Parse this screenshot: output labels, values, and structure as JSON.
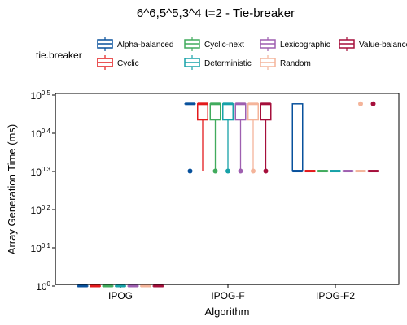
{
  "chart_data": {
    "type": "box",
    "title": "6^6,5^5,3^4 t=2 - Tie-breaker",
    "xlabel": "Algorithm",
    "ylabel": "Array Generation Time (ms)",
    "y_scale": "log10",
    "ylim": [
      0,
      0.5
    ],
    "y_ticks": [
      {
        "value": 0,
        "base": "10",
        "exp": "0"
      },
      {
        "value": 0.1,
        "base": "10",
        "exp": "0.1"
      },
      {
        "value": 0.2,
        "base": "10",
        "exp": "0.2"
      },
      {
        "value": 0.3,
        "base": "10",
        "exp": "0.3"
      },
      {
        "value": 0.4,
        "base": "10",
        "exp": "0.4"
      },
      {
        "value": 0.5,
        "base": "10",
        "exp": "0.5"
      }
    ],
    "categories": [
      "IPOG",
      "IPOG-F",
      "IPOG-F2"
    ],
    "legend": {
      "title": "tie.breaker",
      "position": "top",
      "entries": [
        "Alpha-balanced",
        "Cyclic",
        "Cyclic-next",
        "Deterministic",
        "Lexicographic",
        "Random",
        "Value-balanced"
      ]
    },
    "grid": false,
    "series": [
      {
        "name": "Alpha-balanced",
        "color": "#08519c",
        "boxes": [
          {
            "category": "IPOG",
            "min": 0.0,
            "q1": 0.0,
            "median": 0.0,
            "q3": 0.0,
            "max": 0.0,
            "outliers": []
          },
          {
            "category": "IPOG-F",
            "min": 0.477,
            "q1": 0.477,
            "median": 0.477,
            "q3": 0.477,
            "max": 0.477,
            "outliers": [
              0.301
            ]
          },
          {
            "category": "IPOG-F2",
            "min": 0.301,
            "q1": 0.301,
            "median": 0.301,
            "q3": 0.477,
            "max": 0.477,
            "outliers": []
          }
        ]
      },
      {
        "name": "Cyclic",
        "color": "#e31a1c",
        "boxes": [
          {
            "category": "IPOG",
            "min": 0.0,
            "q1": 0.0,
            "median": 0.0,
            "q3": 0.0,
            "max": 0.0,
            "outliers": []
          },
          {
            "category": "IPOG-F",
            "min": 0.301,
            "q1": 0.435,
            "median": 0.477,
            "q3": 0.477,
            "max": 0.477,
            "outliers": []
          },
          {
            "category": "IPOG-F2",
            "min": 0.301,
            "q1": 0.301,
            "median": 0.301,
            "q3": 0.301,
            "max": 0.301,
            "outliers": []
          }
        ]
      },
      {
        "name": "Cyclic-next",
        "color": "#41ab5d",
        "boxes": [
          {
            "category": "IPOG",
            "min": 0.0,
            "q1": 0.0,
            "median": 0.0,
            "q3": 0.0,
            "max": 0.0,
            "outliers": []
          },
          {
            "category": "IPOG-F",
            "min": 0.301,
            "q1": 0.435,
            "median": 0.477,
            "q3": 0.477,
            "max": 0.477,
            "outliers": [
              0.301
            ]
          },
          {
            "category": "IPOG-F2",
            "min": 0.301,
            "q1": 0.301,
            "median": 0.301,
            "q3": 0.301,
            "max": 0.301,
            "outliers": []
          }
        ]
      },
      {
        "name": "Deterministic",
        "color": "#17a2a8",
        "boxes": [
          {
            "category": "IPOG",
            "min": 0.0,
            "q1": 0.0,
            "median": 0.0,
            "q3": 0.0,
            "max": 0.0,
            "outliers": []
          },
          {
            "category": "IPOG-F",
            "min": 0.301,
            "q1": 0.435,
            "median": 0.477,
            "q3": 0.477,
            "max": 0.477,
            "outliers": [
              0.301
            ]
          },
          {
            "category": "IPOG-F2",
            "min": 0.301,
            "q1": 0.301,
            "median": 0.301,
            "q3": 0.301,
            "max": 0.301,
            "outliers": []
          }
        ]
      },
      {
        "name": "Lexicographic",
        "color": "#9e5fb0",
        "boxes": [
          {
            "category": "IPOG",
            "min": 0.0,
            "q1": 0.0,
            "median": 0.0,
            "q3": 0.0,
            "max": 0.0,
            "outliers": []
          },
          {
            "category": "IPOG-F",
            "min": 0.301,
            "q1": 0.435,
            "median": 0.477,
            "q3": 0.477,
            "max": 0.477,
            "outliers": [
              0.301
            ]
          },
          {
            "category": "IPOG-F2",
            "min": 0.301,
            "q1": 0.301,
            "median": 0.301,
            "q3": 0.301,
            "max": 0.301,
            "outliers": []
          }
        ]
      },
      {
        "name": "Random",
        "color": "#f4b49a",
        "boxes": [
          {
            "category": "IPOG",
            "min": 0.0,
            "q1": 0.0,
            "median": 0.0,
            "q3": 0.0,
            "max": 0.0,
            "outliers": []
          },
          {
            "category": "IPOG-F",
            "min": 0.301,
            "q1": 0.435,
            "median": 0.477,
            "q3": 0.477,
            "max": 0.477,
            "outliers": [
              0.301
            ]
          },
          {
            "category": "IPOG-F2",
            "min": 0.301,
            "q1": 0.301,
            "median": 0.301,
            "q3": 0.301,
            "max": 0.301,
            "outliers": [
              0.477
            ]
          }
        ]
      },
      {
        "name": "Value-balanced",
        "color": "#a50f3b",
        "boxes": [
          {
            "category": "IPOG",
            "min": 0.0,
            "q1": 0.0,
            "median": 0.0,
            "q3": 0.0,
            "max": 0.0,
            "outliers": []
          },
          {
            "category": "IPOG-F",
            "min": 0.301,
            "q1": 0.435,
            "median": 0.477,
            "q3": 0.477,
            "max": 0.477,
            "outliers": [
              0.301
            ]
          },
          {
            "category": "IPOG-F2",
            "min": 0.301,
            "q1": 0.301,
            "median": 0.301,
            "q3": 0.301,
            "max": 0.301,
            "outliers": [
              0.477
            ]
          }
        ]
      }
    ]
  }
}
